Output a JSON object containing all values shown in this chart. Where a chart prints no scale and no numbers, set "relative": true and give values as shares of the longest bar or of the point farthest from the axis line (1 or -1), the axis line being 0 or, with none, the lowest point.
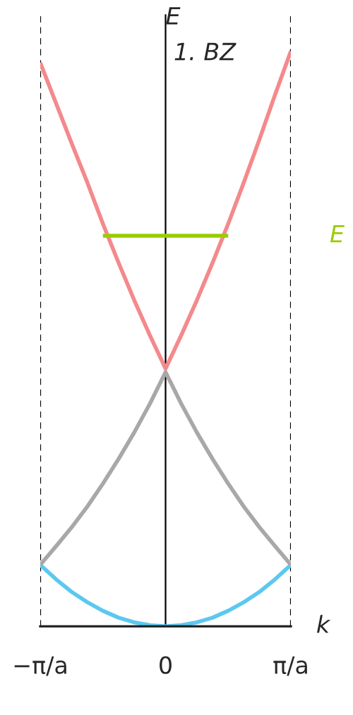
{
  "chart_data": {
    "type": "line",
    "relative": true,
    "ylabel": "E",
    "xlabel": "k",
    "annotations": [
      "1. BZ"
    ],
    "categories": [
      "−π/a",
      null,
      null,
      null,
      null,
      null,
      null,
      null,
      "0",
      null,
      null,
      null,
      null,
      null,
      null,
      null,
      "π/a"
    ],
    "series": [
      {
        "color": "#5bc8f0",
        "values": [
          0.107,
          0.082,
          0.06,
          0.042,
          0.027,
          0.015,
          0.007,
          0.002,
          0,
          0.002,
          0.007,
          0.015,
          0.027,
          0.042,
          0.06,
          0.082,
          0.107
        ]
      },
      {
        "color": "#a8a8a8",
        "values": [
          0.107,
          0.139,
          0.172,
          0.208,
          0.248,
          0.291,
          0.337,
          0.387,
          0.442,
          0.387,
          0.337,
          0.291,
          0.248,
          0.208,
          0.172,
          0.139,
          0.107
        ]
      },
      {
        "color": "#f4898c",
        "values": [
          0.98,
          0.91,
          0.84,
          0.772,
          0.7,
          0.632,
          0.567,
          0.506,
          0.448,
          0.506,
          0.567,
          0.632,
          0.7,
          0.772,
          0.847,
          0.925,
          1.0
        ]
      },
      {
        "name": "E",
        "color": "#99cc00",
        "values": [
          null,
          null,
          null,
          null,
          0.679,
          0.679,
          0.679,
          0.679,
          0.679,
          0.679,
          0.679,
          0.679,
          0.679,
          null,
          null,
          null,
          null
        ]
      }
    ],
    "ref_lines": [
      {
        "axis": "x",
        "value": "−π/a",
        "color": "#000000",
        "line_style": "dashed"
      },
      {
        "axis": "x",
        "value": "0",
        "color": "#000000",
        "line_style": "solid"
      },
      {
        "axis": "x",
        "value": "π/a",
        "color": "#000000",
        "line_style": "dashed"
      }
    ],
    "grid": false,
    "legend": false
  }
}
